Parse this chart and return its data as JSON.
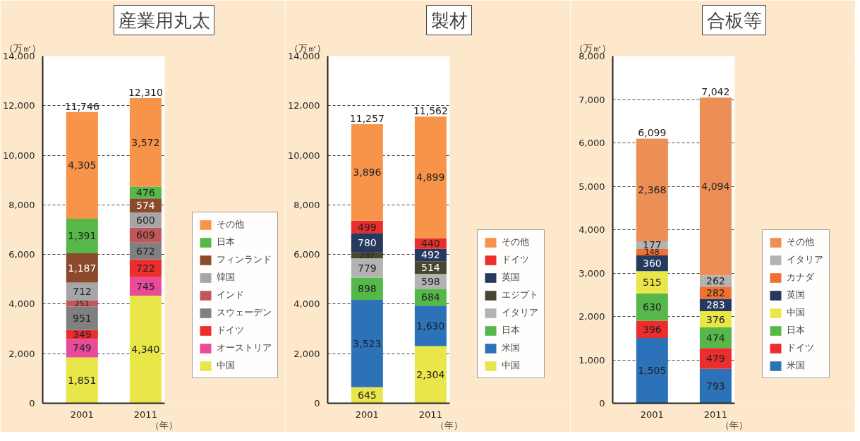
{
  "chart_data": [
    {
      "type": "bar",
      "title": "産業用丸太",
      "ylabel": "（万㎥）",
      "xlabel": "（年）",
      "categories": [
        "2001",
        "2011"
      ],
      "stacked": true,
      "grid": "y",
      "legend": "right",
      "totals": [
        "11,746",
        "12,310"
      ],
      "ylim": [
        0,
        14000
      ],
      "yticks": [
        0,
        {
          "value": 2000,
          "label": "2,000"
        },
        {
          "value": 4000,
          "label": "4,000"
        },
        {
          "value": 6000,
          "label": "6,000"
        },
        {
          "value": 8000,
          "label": "8,000"
        },
        {
          "value": 10000,
          "label": "10,000"
        },
        {
          "value": 12000,
          "label": "12,000"
        },
        {
          "value": 14000,
          "label": "14,000"
        }
      ],
      "series": [
        {
          "name": "中国",
          "color": "#e9e64a",
          "values": [
            1851,
            4340
          ],
          "value_labels": [
            "1,851",
            "4,340"
          ]
        },
        {
          "name": "オーストリア",
          "color": "#ea4a9a",
          "values": [
            749,
            745
          ],
          "value_labels": [
            "749",
            "745"
          ]
        },
        {
          "name": "ドイツ",
          "color": "#ec2d2d",
          "values": [
            349,
            722
          ],
          "value_labels": [
            "349",
            "722"
          ]
        },
        {
          "name": "スウェーデン",
          "color": "#808083",
          "values": [
            951,
            672
          ],
          "value_labels": [
            "951",
            "672"
          ]
        },
        {
          "name": "インド",
          "color": "#c0575b",
          "values": [
            251,
            609
          ],
          "value_labels": [
            "251",
            "609"
          ]
        },
        {
          "name": "韓国",
          "color": "#a6a6a8",
          "values": [
            712,
            600
          ],
          "value_labels": [
            "712",
            "600"
          ]
        },
        {
          "name": "フィンランド",
          "color": "#8b4a2b",
          "values": [
            1187,
            574
          ],
          "value_labels": [
            "1,187",
            "574"
          ]
        },
        {
          "name": "日本",
          "color": "#56b848",
          "values": [
            1391,
            476
          ],
          "value_labels": [
            "1,391",
            "476"
          ]
        },
        {
          "name": "その他",
          "color": "#f7944a",
          "values": [
            4305,
            3572
          ],
          "value_labels": [
            "4,305",
            "3,572"
          ]
        }
      ]
    },
    {
      "type": "bar",
      "title": "製材",
      "ylabel": "（万㎥）",
      "xlabel": "（年）",
      "categories": [
        "2001",
        "2011"
      ],
      "stacked": true,
      "grid": "y",
      "legend": "right",
      "totals": [
        "11,257",
        "11,562"
      ],
      "ylim": [
        0,
        14000
      ],
      "yticks": [
        0,
        {
          "value": 2000,
          "label": "2,000"
        },
        {
          "value": 4000,
          "label": "4,000"
        },
        {
          "value": 6000,
          "label": "6,000"
        },
        {
          "value": 8000,
          "label": "8,000"
        },
        {
          "value": 10000,
          "label": "10,000"
        },
        {
          "value": 12000,
          "label": "12,000"
        },
        {
          "value": 14000,
          "label": "14,000"
        }
      ],
      "series": [
        {
          "name": "中国",
          "color": "#e9e64a",
          "values": [
            645,
            2304
          ],
          "value_labels": [
            "645",
            "2,304"
          ]
        },
        {
          "name": "米国",
          "color": "#2b72b8",
          "values": [
            3523,
            1630
          ],
          "value_labels": [
            "3,523",
            "1,630"
          ]
        },
        {
          "name": "日本",
          "color": "#56b848",
          "values": [
            898,
            684
          ],
          "value_labels": [
            "898",
            "684"
          ]
        },
        {
          "name": "イタリア",
          "color": "#b3b3b3",
          "values": [
            779,
            598
          ],
          "value_labels": [
            "779",
            "598"
          ]
        },
        {
          "name": "エジプト",
          "color": "#4a4530",
          "values": [
            237,
            514
          ],
          "value_labels": [
            "237",
            "514"
          ]
        },
        {
          "name": "英国",
          "color": "#253a5e",
          "values": [
            780,
            492
          ],
          "value_labels": [
            "780",
            "492"
          ]
        },
        {
          "name": "ドイツ",
          "color": "#ec2d2d",
          "values": [
            499,
            440
          ],
          "value_labels": [
            "499",
            "440"
          ]
        },
        {
          "name": "その他",
          "color": "#f7944a",
          "values": [
            3896,
            4899
          ],
          "value_labels": [
            "3,896",
            "4,899"
          ]
        }
      ]
    },
    {
      "type": "bar",
      "title": "合板等",
      "ylabel": "（万㎥）",
      "xlabel": "（年）",
      "categories": [
        "2001",
        "2011"
      ],
      "stacked": true,
      "grid": "y",
      "legend": "right",
      "totals": [
        "6,099",
        "7,042"
      ],
      "ylim": [
        0,
        8000
      ],
      "yticks": [
        0,
        {
          "value": 1000,
          "label": "1,000"
        },
        {
          "value": 2000,
          "label": "2,000"
        },
        {
          "value": 3000,
          "label": "3,000"
        },
        {
          "value": 4000,
          "label": "4,000"
        },
        {
          "value": 5000,
          "label": "5,000"
        },
        {
          "value": 6000,
          "label": "6,000"
        },
        {
          "value": 7000,
          "label": "7,000"
        },
        {
          "value": 8000,
          "label": "8,000"
        }
      ],
      "series": [
        {
          "name": "米国",
          "color": "#2b72b8",
          "values": [
            1505,
            793
          ],
          "value_labels": [
            "1,505",
            "793"
          ]
        },
        {
          "name": "ドイツ",
          "color": "#ec2d2d",
          "values": [
            396,
            479
          ],
          "value_labels": [
            "396",
            "479"
          ]
        },
        {
          "name": "日本",
          "color": "#56b848",
          "values": [
            630,
            474
          ],
          "value_labels": [
            "630",
            "474"
          ]
        },
        {
          "name": "中国",
          "color": "#e9e64a",
          "values": [
            515,
            376
          ],
          "value_labels": [
            "515",
            "376"
          ]
        },
        {
          "name": "英国",
          "color": "#253a5e",
          "values": [
            360,
            283
          ],
          "value_labels": [
            "360",
            "283"
          ]
        },
        {
          "name": "カナダ",
          "color": "#f07030",
          "values": [
            148,
            282
          ],
          "value_labels": [
            "148",
            "282"
          ]
        },
        {
          "name": "イタリア",
          "color": "#b3b3b3",
          "values": [
            177,
            262
          ],
          "value_labels": [
            "177",
            "262"
          ]
        },
        {
          "name": "その他",
          "color": "#ec8f57",
          "values": [
            2368,
            4094
          ],
          "value_labels": [
            "2,368",
            "4,094"
          ]
        }
      ]
    }
  ]
}
